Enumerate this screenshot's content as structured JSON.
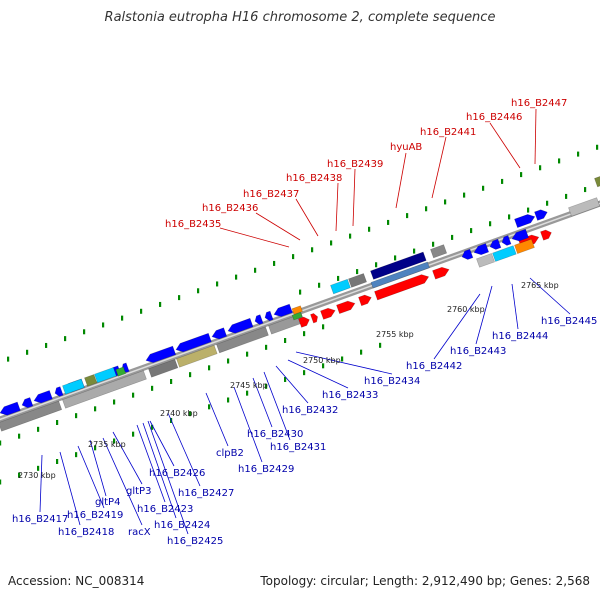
{
  "title": "Ralstonia eutropha H16 chromosome 2, complete sequence",
  "footer": {
    "accession": "Accession: NC_008314",
    "summary": "Topology: circular; Length: 2,912,490 bp; Genes: 2,568"
  },
  "ticks": [
    "2730 kbp",
    "2735 kbp",
    "2740 kbp",
    "2745 kbp",
    "2750 kbp",
    "2755 kbp",
    "2760 kbp",
    "2765 kbp"
  ],
  "colors": {
    "forward_cds": "#ff0000",
    "reverse_cds": "#0000ff",
    "rna": "#00ccff",
    "backbone": "#999999",
    "dots": "#008800"
  },
  "labels_top": [
    "h16_B2435",
    "h16_B2436",
    "h16_B2437",
    "h16_B2438",
    "h16_B2439",
    "hyuAB",
    "h16_B2441",
    "h16_B2446",
    "h16_B2447"
  ],
  "labels_bottom": [
    "h16_B2417",
    "h16_B2418",
    "h16_B2419",
    "gltP4",
    "racX",
    "gltP3",
    "h16_B2423",
    "h16_B2424",
    "h16_B2425",
    "h16_B2426",
    "h16_B2427",
    "clpB2",
    "h16_B2429",
    "h16_B2430",
    "h16_B2431",
    "h16_B2432",
    "h16_B2433",
    "h16_B2434",
    "h16_B2442",
    "h16_B2443",
    "h16_B2444",
    "h16_B2445"
  ]
}
